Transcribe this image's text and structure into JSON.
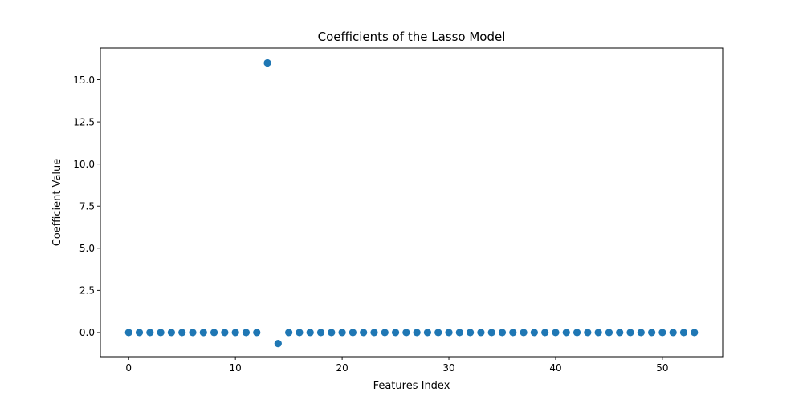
{
  "chart_data": {
    "type": "scatter",
    "title": "Coefficients of the Lasso Model",
    "xlabel": "Features Index",
    "ylabel": "Coefficient Value",
    "xlim": [
      -2.65,
      55.65
    ],
    "ylim": [
      -1.43,
      16.88
    ],
    "xticks": [
      0,
      10,
      20,
      30,
      40,
      50
    ],
    "xtick_labels": [
      "0",
      "10",
      "20",
      "30",
      "40",
      "50"
    ],
    "yticks": [
      0.0,
      2.5,
      5.0,
      7.5,
      10.0,
      12.5,
      15.0
    ],
    "ytick_labels": [
      "0.0",
      "2.5",
      "5.0",
      "7.5",
      "10.0",
      "12.5",
      "15.0"
    ],
    "grid": false,
    "series": [
      {
        "color": "#1f77b4",
        "x": [
          0,
          1,
          2,
          3,
          4,
          5,
          6,
          7,
          8,
          9,
          10,
          11,
          12,
          13,
          14,
          15,
          16,
          17,
          18,
          19,
          20,
          21,
          22,
          23,
          24,
          25,
          26,
          27,
          28,
          29,
          30,
          31,
          32,
          33,
          34,
          35,
          36,
          37,
          38,
          39,
          40,
          41,
          42,
          43,
          44,
          45,
          46,
          47,
          48,
          49,
          50,
          51,
          52,
          53
        ],
        "y": [
          0,
          0,
          0,
          0,
          0,
          0,
          0,
          0,
          0,
          0,
          0,
          0,
          0,
          16.0,
          -0.65,
          0,
          0,
          0,
          0,
          0,
          0,
          0,
          0,
          0,
          0,
          0,
          0,
          0,
          0,
          0,
          0,
          0,
          0,
          0,
          0,
          0,
          0,
          0,
          0,
          0,
          0,
          0,
          0,
          0,
          0,
          0,
          0,
          0,
          0,
          0,
          0,
          0,
          0,
          0
        ]
      }
    ]
  }
}
